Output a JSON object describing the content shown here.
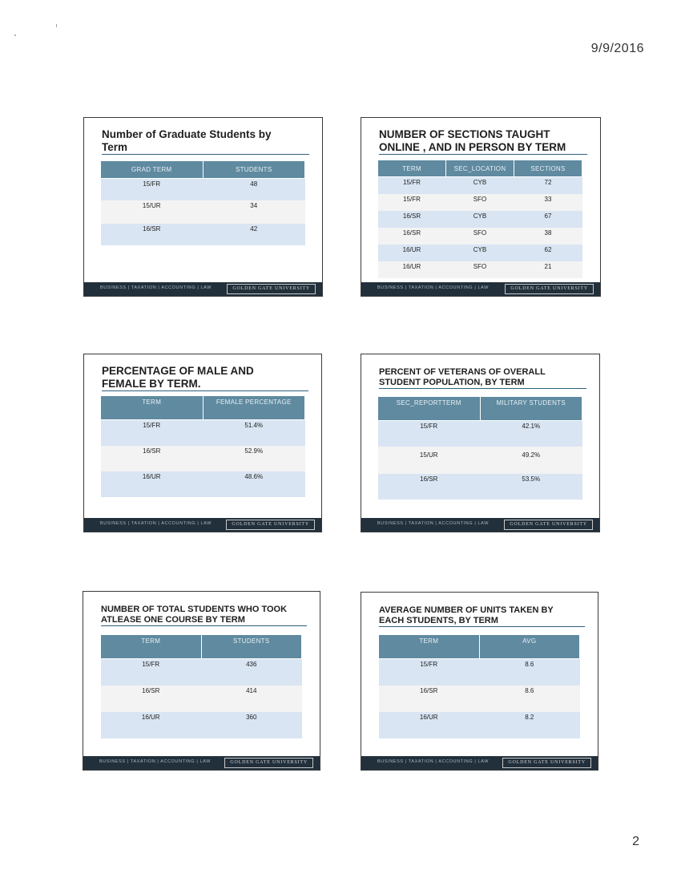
{
  "page": {
    "date": "9/9/2016",
    "number": "2"
  },
  "footer": {
    "nav": "BUSINESS | TAXATION | ACCOUNTING | LAW",
    "brand": "GOLDEN GATE UNIVERSITY"
  },
  "slides": [
    {
      "number": "",
      "title_lines": [
        "Number of Graduate Students by",
        "Term"
      ],
      "columns": [
        "GRAD TERM",
        "STUDENTS"
      ],
      "rows": [
        [
          "15/FR",
          "48"
        ],
        [
          "15/UR",
          "34"
        ],
        [
          "16/SR",
          "42"
        ]
      ]
    },
    {
      "number": "",
      "title_lines": [
        "NUMBER OF SECTIONS TAUGHT",
        "ONLINE , AND IN PERSON BY TERM"
      ],
      "columns": [
        "TERM",
        "SEC_LOCATION",
        "SECTIONS"
      ],
      "rows": [
        [
          "15/FR",
          "CYB",
          "72"
        ],
        [
          "15/FR",
          "SFO",
          "33"
        ],
        [
          "16/SR",
          "CYB",
          "67"
        ],
        [
          "16/SR",
          "SFO",
          "38"
        ],
        [
          "16/UR",
          "CYB",
          "62"
        ],
        [
          "16/UR",
          "SFO",
          "21"
        ]
      ]
    },
    {
      "number": "",
      "title_lines": [
        "PERCENTAGE OF MALE AND",
        "FEMALE BY TERM."
      ],
      "columns": [
        "TERM",
        "FEMALE PERCENTAGE"
      ],
      "rows": [
        [
          "15/FR",
          "51.4%"
        ],
        [
          "16/SR",
          "52.9%"
        ],
        [
          "16/UR",
          "48.6%"
        ]
      ]
    },
    {
      "number": "",
      "title_lines": [
        "PERCENT OF VETERANS OF OVERALL",
        "STUDENT POPULATION, BY TERM"
      ],
      "columns": [
        "SEC_REPORTTERM",
        "MILITARY STUDENTS"
      ],
      "rows": [
        [
          "15/FR",
          "42.1%"
        ],
        [
          "15/UR",
          "49.2%"
        ],
        [
          "16/SR",
          "53.5%"
        ]
      ]
    },
    {
      "number": "",
      "title_lines": [
        "NUMBER OF TOTAL STUDENTS WHO TOOK",
        "ATLEASE ONE COURSE BY TERM"
      ],
      "columns": [
        "TERM",
        "STUDENTS"
      ],
      "rows": [
        [
          "15/FR",
          "436"
        ],
        [
          "16/SR",
          "414"
        ],
        [
          "16/UR",
          "360"
        ]
      ]
    },
    {
      "number": "",
      "title_lines": [
        "AVERAGE NUMBER OF UNITS TAKEN BY",
        "EACH STUDENTS, BY TERM"
      ],
      "columns": [
        "TERM",
        "AVG"
      ],
      "rows": [
        [
          "15/FR",
          "8.6"
        ],
        [
          "16/SR",
          "8.6"
        ],
        [
          "16/UR",
          "8.2"
        ]
      ]
    }
  ]
}
